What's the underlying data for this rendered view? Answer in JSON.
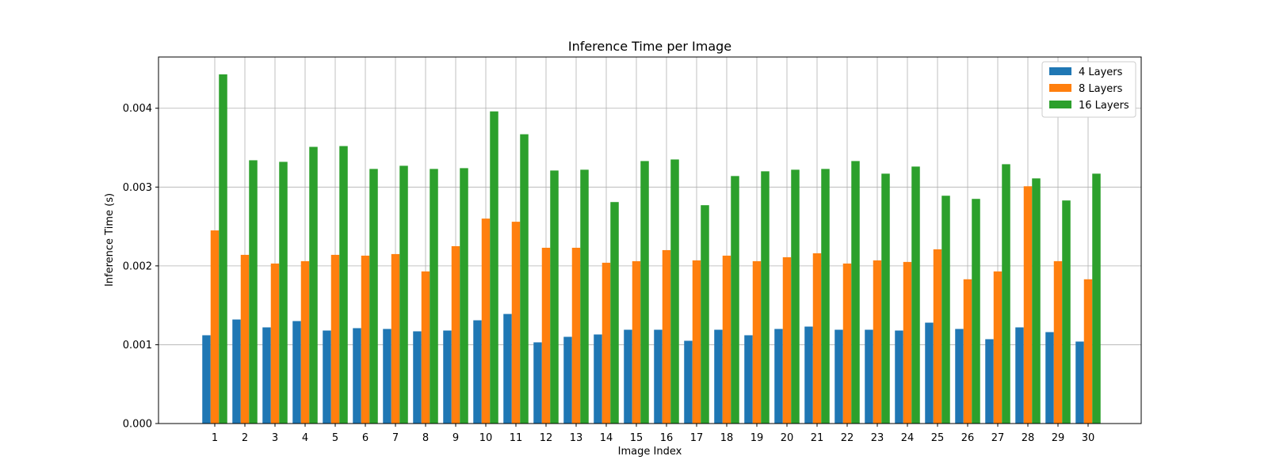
{
  "chart_data": {
    "type": "bar",
    "title": "Inference Time per Image",
    "xlabel": "Image Index",
    "ylabel": "Inference Time (s)",
    "categories": [
      "1",
      "2",
      "3",
      "4",
      "5",
      "6",
      "7",
      "8",
      "9",
      "10",
      "11",
      "12",
      "13",
      "14",
      "15",
      "16",
      "17",
      "18",
      "19",
      "20",
      "21",
      "22",
      "23",
      "24",
      "25",
      "26",
      "27",
      "28",
      "29",
      "30"
    ],
    "series": [
      {
        "name": "4 Layers",
        "color": "#1f77b4",
        "values": [
          0.00112,
          0.00132,
          0.00122,
          0.0013,
          0.00118,
          0.00121,
          0.0012,
          0.00117,
          0.00118,
          0.00131,
          0.00139,
          0.00103,
          0.0011,
          0.00113,
          0.00119,
          0.00119,
          0.00105,
          0.00119,
          0.00112,
          0.0012,
          0.00123,
          0.00119,
          0.00119,
          0.00118,
          0.00128,
          0.0012,
          0.00107,
          0.00122,
          0.00116,
          0.00104
        ]
      },
      {
        "name": "8 Layers",
        "color": "#ff7f0e",
        "values": [
          0.00245,
          0.00214,
          0.00203,
          0.00206,
          0.00214,
          0.00213,
          0.00215,
          0.00193,
          0.00225,
          0.0026,
          0.00256,
          0.00223,
          0.00223,
          0.00204,
          0.00206,
          0.0022,
          0.00207,
          0.00213,
          0.00206,
          0.00211,
          0.00216,
          0.00203,
          0.00207,
          0.00205,
          0.00221,
          0.00183,
          0.00193,
          0.00301,
          0.00206,
          0.00183
        ]
      },
      {
        "name": "16 Layers",
        "color": "#2ca02c",
        "values": [
          0.00443,
          0.00334,
          0.00332,
          0.00351,
          0.00352,
          0.00323,
          0.00327,
          0.00323,
          0.00324,
          0.00396,
          0.00367,
          0.00321,
          0.00322,
          0.00281,
          0.00333,
          0.00335,
          0.00277,
          0.00314,
          0.0032,
          0.00322,
          0.00323,
          0.00333,
          0.00317,
          0.00326,
          0.00289,
          0.00285,
          0.00329,
          0.00311,
          0.00283,
          0.00317
        ]
      }
    ],
    "ylim": [
      0,
      0.00465
    ],
    "yticks": [
      "0.000",
      "0.001",
      "0.002",
      "0.003",
      "0.004"
    ],
    "ytick_values": [
      0,
      0.001,
      0.002,
      0.003,
      0.004
    ],
    "grid": true,
    "legend": "top-right"
  }
}
